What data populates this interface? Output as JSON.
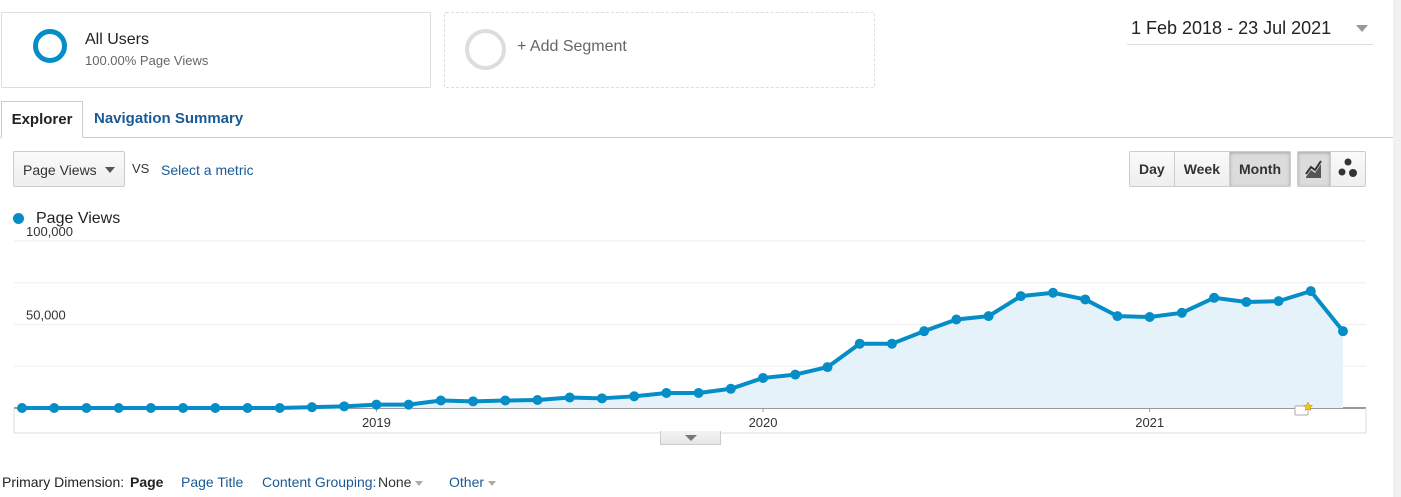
{
  "segments": {
    "active": {
      "title": "All Users",
      "subtitle": "100.00% Page Views",
      "color": "#058dc7"
    },
    "add": {
      "label": "+ Add Segment"
    }
  },
  "date_range": "1 Feb 2018 - 23 Jul 2021",
  "tabs": [
    {
      "label": "Explorer",
      "active": true
    },
    {
      "label": "Navigation Summary",
      "active": false
    }
  ],
  "metric": {
    "selected": "Page Views",
    "vs": "VS",
    "compare_link": "Select a metric"
  },
  "granularity": [
    {
      "label": "Day",
      "active": false
    },
    {
      "label": "Week",
      "active": false
    },
    {
      "label": "Month",
      "active": true
    }
  ],
  "chart_types": [
    {
      "icon": "line-chart-icon",
      "active": true
    },
    {
      "icon": "motion-chart-icon",
      "active": false
    }
  ],
  "legend": {
    "label": "Page Views",
    "color": "#058dc7"
  },
  "chart_data": {
    "type": "area",
    "series": [
      {
        "name": "Page Views",
        "color": "#058dc7",
        "fill": "#e6f2fa",
        "x": [
          "Feb 2018",
          "Mar 2018",
          "Apr 2018",
          "May 2018",
          "Jun 2018",
          "Jul 2018",
          "Aug 2018",
          "Sep 2018",
          "Oct 2018",
          "Nov 2018",
          "Dec 2018",
          "Jan 2019",
          "Feb 2019",
          "Mar 2019",
          "Apr 2019",
          "May 2019",
          "Jun 2019",
          "Jul 2019",
          "Aug 2019",
          "Sep 2019",
          "Oct 2019",
          "Nov 2019",
          "Dec 2019",
          "Jan 2020",
          "Feb 2020",
          "Mar 2020",
          "Apr 2020",
          "May 2020",
          "Jun 2020",
          "Jul 2020",
          "Aug 2020",
          "Sep 2020",
          "Oct 2020",
          "Nov 2020",
          "Dec 2020",
          "Jan 2021",
          "Feb 2021",
          "Mar 2021",
          "Apr 2021",
          "May 2021",
          "Jun 2021",
          "Jul 2021"
        ],
        "values": [
          0,
          0,
          0,
          0,
          0,
          0,
          0,
          0,
          0,
          500,
          1000,
          2000,
          2000,
          4500,
          4000,
          4500,
          4800,
          6300,
          5800,
          7000,
          9000,
          9000,
          11500,
          18000,
          20000,
          24500,
          38500,
          38500,
          46000,
          53000,
          55000,
          67000,
          69000,
          65000,
          55000,
          54500,
          57000,
          66000,
          63500,
          64000,
          70000,
          46000
        ]
      }
    ],
    "ylabel": "",
    "yticks": [
      "100,000",
      "50,000"
    ],
    "ylim": [
      0,
      100000
    ],
    "xticks": [
      {
        "label": "2019",
        "at": "Jan 2019"
      },
      {
        "label": "2020",
        "at": "Jan 2020"
      },
      {
        "label": "2021",
        "at": "Jan 2021"
      }
    ],
    "grid": true,
    "annotation_icon": "annotation-star-icon"
  },
  "primary_dimension": {
    "label": "Primary Dimension:",
    "current": "Page",
    "options": [
      "Page Title"
    ],
    "content_grouping_label": "Content Grouping:",
    "content_grouping_value": "None",
    "other": "Other"
  }
}
